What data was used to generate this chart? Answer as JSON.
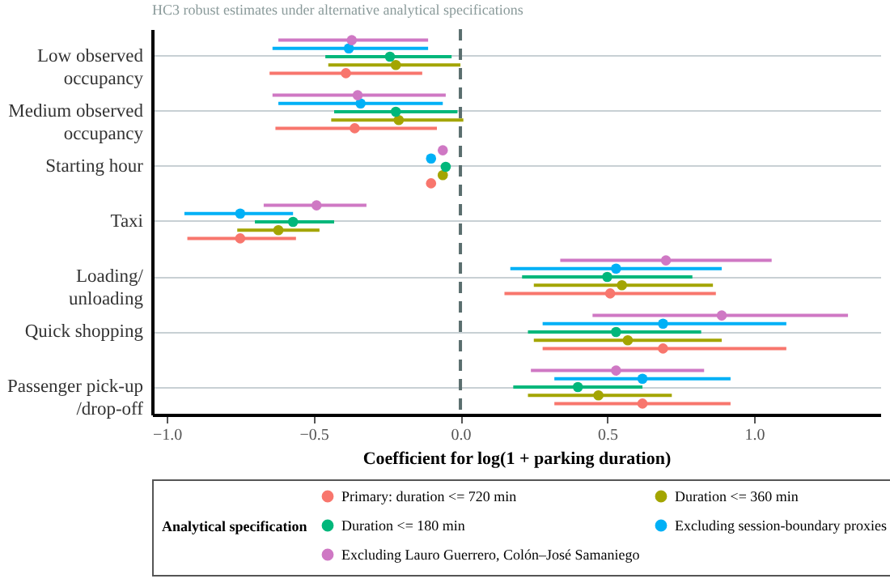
{
  "chart_data": {
    "type": "scatter",
    "orientation": "horizontal",
    "title": "HC3 robust estimates under alternative analytical specifications",
    "xlabel": "Coefficient for log(1 + parking duration)",
    "legend_title": "Analytical specification",
    "categories": [
      "Low observed occupancy",
      "Medium observed occupancy",
      "Starting hour",
      "Taxi",
      "Loading/unloading",
      "Quick shopping",
      "Passenger pick-up/drop-off"
    ],
    "series": [
      {
        "name": "Primary: duration <= 720 min",
        "color": "#f8766d",
        "values": [
          -0.39,
          -0.36,
          -0.1,
          -0.75,
          0.51,
          0.69,
          0.62
        ],
        "errors": [
          [
            -0.65,
            -0.13
          ],
          [
            -0.63,
            -0.08
          ],
          [
            -0.11,
            -0.09
          ],
          [
            -0.93,
            -0.56
          ],
          [
            0.15,
            0.87
          ],
          [
            0.28,
            1.11
          ],
          [
            0.32,
            0.92
          ]
        ]
      },
      {
        "name": "Duration <= 360 min",
        "color": "#a3a500",
        "values": [
          -0.22,
          -0.21,
          -0.06,
          -0.62,
          0.55,
          0.57,
          0.47
        ],
        "errors": [
          [
            -0.45,
            0.0
          ],
          [
            -0.44,
            0.01
          ],
          [
            -0.07,
            -0.05
          ],
          [
            -0.76,
            -0.48
          ],
          [
            0.25,
            0.86
          ],
          [
            0.25,
            0.89
          ],
          [
            0.23,
            0.72
          ]
        ]
      },
      {
        "name": "Duration <= 180 min",
        "color": "#00b77b",
        "values": [
          -0.24,
          -0.22,
          -0.05,
          -0.57,
          0.5,
          0.53,
          0.4
        ],
        "errors": [
          [
            -0.46,
            -0.03
          ],
          [
            -0.43,
            -0.01
          ],
          [
            -0.06,
            -0.04
          ],
          [
            -0.7,
            -0.43
          ],
          [
            0.21,
            0.79
          ],
          [
            0.23,
            0.82
          ],
          [
            0.18,
            0.62
          ]
        ]
      },
      {
        "name": "Excluding session-boundary proxies",
        "color": "#00b0f6",
        "values": [
          -0.38,
          -0.34,
          -0.1,
          -0.75,
          0.53,
          0.69,
          0.62
        ],
        "errors": [
          [
            -0.64,
            -0.11
          ],
          [
            -0.62,
            -0.06
          ],
          [
            -0.11,
            -0.09
          ],
          [
            -0.94,
            -0.57
          ],
          [
            0.17,
            0.89
          ],
          [
            0.28,
            1.11
          ],
          [
            0.32,
            0.92
          ]
        ]
      },
      {
        "name": "Excluding Lauro Guerrero, Colón–José Samaniego",
        "color": "#cf78c4",
        "values": [
          -0.37,
          -0.35,
          -0.06,
          -0.49,
          0.7,
          0.89,
          0.53
        ],
        "errors": [
          [
            -0.62,
            -0.11
          ],
          [
            -0.64,
            -0.05
          ],
          [
            -0.07,
            -0.05
          ],
          [
            -0.67,
            -0.32
          ],
          [
            0.34,
            1.06
          ],
          [
            0.45,
            1.32
          ],
          [
            0.24,
            0.83
          ]
        ]
      }
    ],
    "xlim": [
      -1.05,
      1.43
    ],
    "xticks": [
      {
        "value": -1.0,
        "label": "−1.0"
      },
      {
        "value": -0.5,
        "label": "−0.5"
      },
      {
        "value": 0.0,
        "label": "0.0"
      },
      {
        "value": 0.5,
        "label": "0.5"
      },
      {
        "value": 1.0,
        "label": "1.0"
      }
    ],
    "ref_lines": [
      {
        "axis": "x",
        "value": 0,
        "label": null,
        "color": "#5a6e6e",
        "line_style": "dashed"
      }
    ],
    "grid": "y",
    "legend": "bottom",
    "marker": "circle"
  }
}
